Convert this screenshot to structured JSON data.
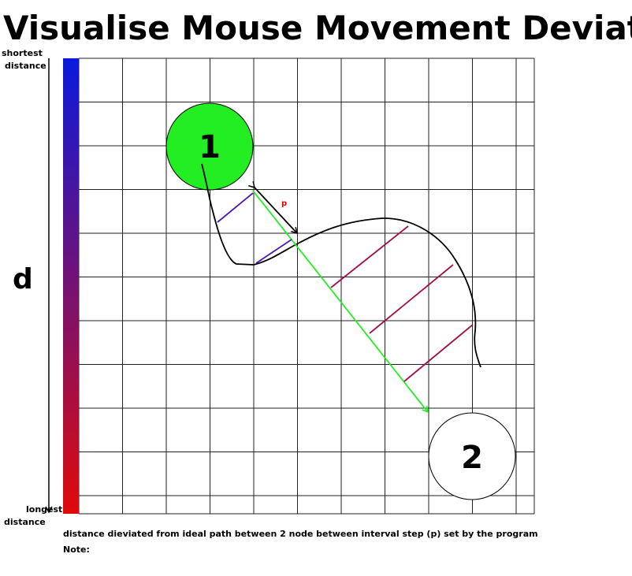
{
  "header": {
    "title": "Visualise Mouse Movement Deviation"
  },
  "scale": {
    "top_label": [
      "shortest",
      "distance"
    ],
    "bottom_label": [
      "longest",
      "distance"
    ],
    "axis_label": "d"
  },
  "nodes": [
    {
      "label": "1"
    },
    {
      "label": "2"
    }
  ],
  "interval_label": "p",
  "caption": [
    "distance dieviated from ideal path between 2 node between interval step (p) set by the program",
    "Note:"
  ]
}
